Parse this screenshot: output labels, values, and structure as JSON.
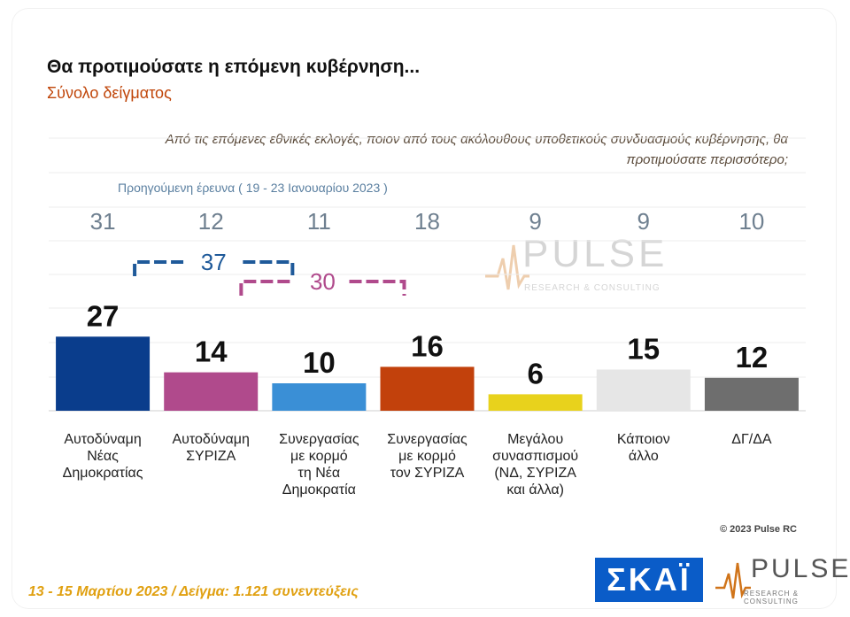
{
  "header": {
    "title": "Θα προτιμούσατε η επόμενη κυβέρνηση...",
    "subtitle": "Σύνολο δείγματος",
    "question": "Από τις επόμενες εθνικές εκλογές, ποιον από τους ακόλουθους υποθετικούς συνδυασμούς κυβέρνησης, θα προτιμούσατε περισσότερο;"
  },
  "previous_survey": {
    "caption": "Προηγούμενη έρευνα  ( 19 - 23 Ιανουαρίου  2023 )"
  },
  "chart_data": {
    "type": "bar",
    "categories": [
      "Αυτοδύναμη Νέας Δημοκρατίας",
      "Αυτοδύναμη ΣΥΡΙΖΑ",
      "Συνεργασίας με κορμό τη Νέα Δημοκρατία",
      "Συνεργασίας με κορμό τον ΣΥΡΙΖΑ",
      "Μεγάλου συνασπισμού (ΝΔ, ΣΥΡΙΖΑ και άλλα)",
      "Κάποιον άλλο",
      "ΔΓ/ΔΑ"
    ],
    "category_lines": [
      [
        "Αυτοδύναμη",
        "Νέας",
        "Δημοκρατίας"
      ],
      [
        "Αυτοδύναμη",
        "ΣΥΡΙΖΑ"
      ],
      [
        "Συνεργασίας",
        "με κορμό",
        "τη Νέα",
        "Δημοκρατία"
      ],
      [
        "Συνεργασίας",
        "με κορμό",
        "τον ΣΥΡΙΖΑ"
      ],
      [
        "Μεγάλου",
        "συνασπισμού",
        "(ΝΔ, ΣΥΡΙΖΑ",
        "και άλλα)"
      ],
      [
        "Κάποιον",
        "άλλο"
      ],
      [
        "ΔΓ/ΔΑ"
      ]
    ],
    "values": [
      27,
      14,
      10,
      16,
      6,
      15,
      12
    ],
    "previous_values": [
      31,
      12,
      11,
      18,
      9,
      9,
      10
    ],
    "colors": [
      "#0a3d8c",
      "#b04a8c",
      "#3a8fd6",
      "#c2410c",
      "#e8d21c",
      "#e6e6e6",
      "#6e6e6e"
    ],
    "brackets": [
      {
        "value": 37,
        "from": 0,
        "to": 2,
        "color": "#1f5a9a"
      },
      {
        "value": 30,
        "from": 2,
        "to": 3,
        "color": "#b04a8c"
      }
    ],
    "grid": true
  },
  "copyright": "© 2023 Pulse RC",
  "footer": "13 - 15  Μαρτίου  2023  /  Δείγμα:  1.121 συνεντεύξεις",
  "logos": {
    "skai": "ΣΚΑΪ",
    "pulse": "PULSE",
    "pulse_tagline": "RESEARCH & CONSULTING"
  }
}
